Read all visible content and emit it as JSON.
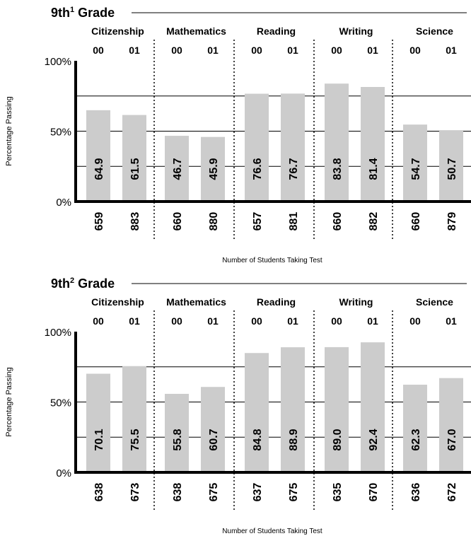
{
  "chart_data": [
    {
      "type": "bar",
      "title": "Grade",
      "title_prefix": "9th",
      "title_superscript": "1",
      "subjects": [
        "Citizenship",
        "Mathematics",
        "Reading",
        "Writing",
        "Science"
      ],
      "categories": [
        "00",
        "01",
        "00",
        "01",
        "00",
        "01",
        "00",
        "01",
        "00",
        "01"
      ],
      "values": [
        64.9,
        61.5,
        46.7,
        45.9,
        76.6,
        76.7,
        83.8,
        81.4,
        54.7,
        50.7
      ],
      "value_labels": [
        "64.9",
        "61.5",
        "46.7",
        "45.9",
        "76.6",
        "76.7",
        "83.8",
        "81.4",
        "54.7",
        "50.7"
      ],
      "students": [
        "659",
        "883",
        "660",
        "880",
        "657",
        "881",
        "660",
        "882",
        "660",
        "879"
      ],
      "ylabel": "Percentage Passing",
      "xlabel": "Number of Students Taking Test",
      "yticks": [
        "100%",
        "50%",
        "0%"
      ],
      "ylim": [
        0,
        100
      ],
      "grid": true,
      "bar_color": "#cccccc"
    },
    {
      "type": "bar",
      "title": "Grade",
      "title_prefix": "9th",
      "title_superscript": "2",
      "subjects": [
        "Citizenship",
        "Mathematics",
        "Reading",
        "Writing",
        "Science"
      ],
      "categories": [
        "00",
        "01",
        "00",
        "01",
        "00",
        "01",
        "00",
        "01",
        "00",
        "01"
      ],
      "values": [
        70.1,
        75.5,
        55.8,
        60.7,
        84.8,
        88.9,
        89.0,
        92.4,
        62.3,
        67.0
      ],
      "value_labels": [
        "70.1",
        "75.5",
        "55.8",
        "60.7",
        "84.8",
        "88.9",
        "89.0",
        "92.4",
        "62.3",
        "67.0"
      ],
      "students": [
        "638",
        "673",
        "638",
        "675",
        "637",
        "675",
        "635",
        "670",
        "636",
        "672"
      ],
      "ylabel": "Percentage Passing",
      "xlabel": "Number of Students Taking Test",
      "yticks": [
        "100%",
        "50%",
        "0%"
      ],
      "ylim": [
        0,
        100
      ],
      "grid": true,
      "bar_color": "#cccccc"
    }
  ]
}
